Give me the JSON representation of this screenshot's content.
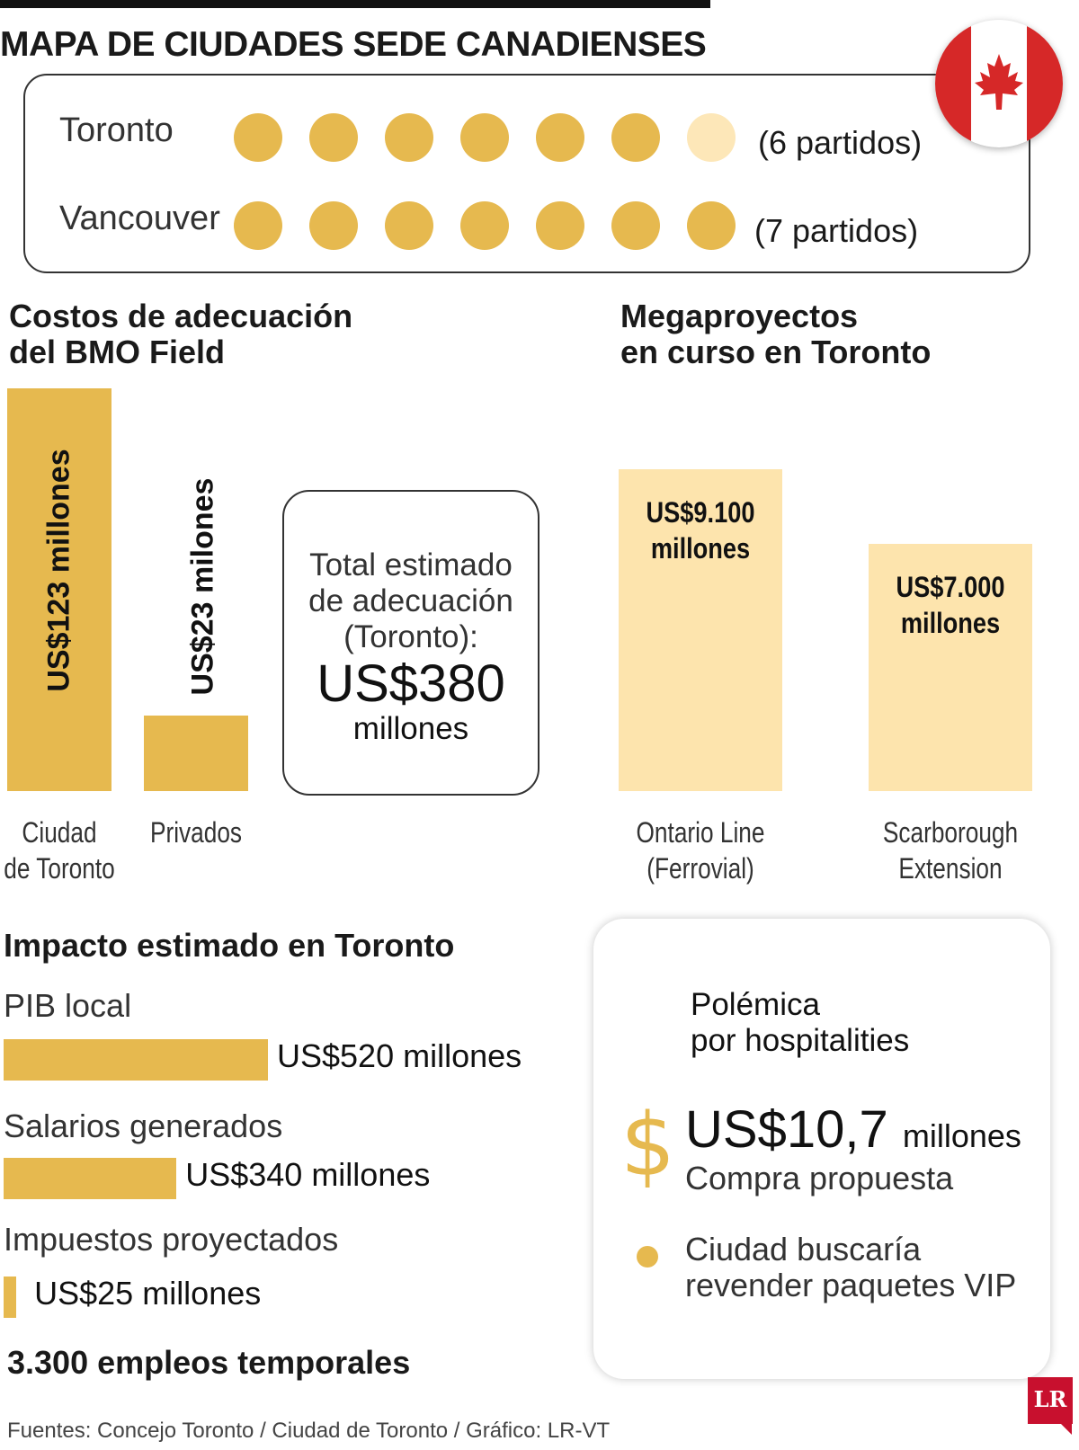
{
  "title": "MAPA DE CIUDADES SEDE CANADIENSES",
  "colors": {
    "gold": "#e6b94f",
    "pale_gold": "#fde4ad",
    "light_dot": "#fde7b8",
    "flag_red": "#d62828"
  },
  "icons": {
    "flag": "canada-flag-icon",
    "dollar": "dollar-sign-icon",
    "logo": "lr-logo"
  },
  "matches": {
    "rows": [
      {
        "city": "Toronto",
        "count_label": "(6 partidos)",
        "filled": 6,
        "total": 7
      },
      {
        "city": "Vancouver",
        "count_label": "(7 partidos)",
        "filled": 7,
        "total": 7
      }
    ]
  },
  "bmo": {
    "title_line1": "Costos de adecuación",
    "title_line2": "del BMO Field"
  },
  "megaprojects": {
    "title_line1": "Megaproyectos",
    "title_line2": "en curso en Toronto"
  },
  "total_box": {
    "line1": "Total estimado",
    "line2": "de adecuación",
    "line3": "(Toronto):",
    "value": "US$380",
    "unit": "millones"
  },
  "impact": {
    "title": "Impacto estimado en Toronto",
    "jobs": "3.300 empleos temporales"
  },
  "hospitalities": {
    "title_line1": "Polémica",
    "title_line2": "por hospitalities",
    "dollar_sign": "$",
    "value": "US$10,7",
    "unit": "millones",
    "sub": "Compra propuesta",
    "note_line1": "Ciudad buscaría",
    "note_line2": "revender paquetes VIP"
  },
  "source": "Fuentes: Concejo Toronto / Ciudad de Toronto / Gráfico: LR-VT",
  "logo_text": "LR",
  "chart_data": [
    {
      "type": "bar",
      "title": "Costos de adecuación del BMO Field",
      "categories": [
        "Ciudad de Toronto",
        "Privados"
      ],
      "category_lines": [
        [
          "Ciudad",
          "de Toronto"
        ],
        [
          "Privados"
        ]
      ],
      "values": [
        123,
        23
      ],
      "value_labels": [
        "US$123 millones",
        "US$23 milones"
      ],
      "ylim": [
        0,
        123
      ]
    },
    {
      "type": "bar",
      "title": "Megaproyectos en curso en Toronto",
      "categories": [
        "Ontario Line (Ferrovial)",
        "Scarborough Extension"
      ],
      "category_lines": [
        [
          "Ontario Line",
          "(Ferrovial)"
        ],
        [
          "Scarborough",
          "Extension"
        ]
      ],
      "values": [
        9100,
        7000
      ],
      "value_labels": [
        [
          "US$9.100",
          "millones"
        ],
        [
          "US$7.000",
          "millones"
        ]
      ],
      "ylim": [
        0,
        9100
      ]
    },
    {
      "type": "bar",
      "orientation": "horizontal",
      "title": "Impacto estimado en Toronto",
      "categories": [
        "PIB local",
        "Salarios generados",
        "Impuestos proyectados"
      ],
      "values": [
        520,
        340,
        25
      ],
      "value_labels": [
        "US$520 millones",
        "US$340 millones",
        "US$25 millones"
      ],
      "xlim": [
        0,
        520
      ]
    }
  ]
}
